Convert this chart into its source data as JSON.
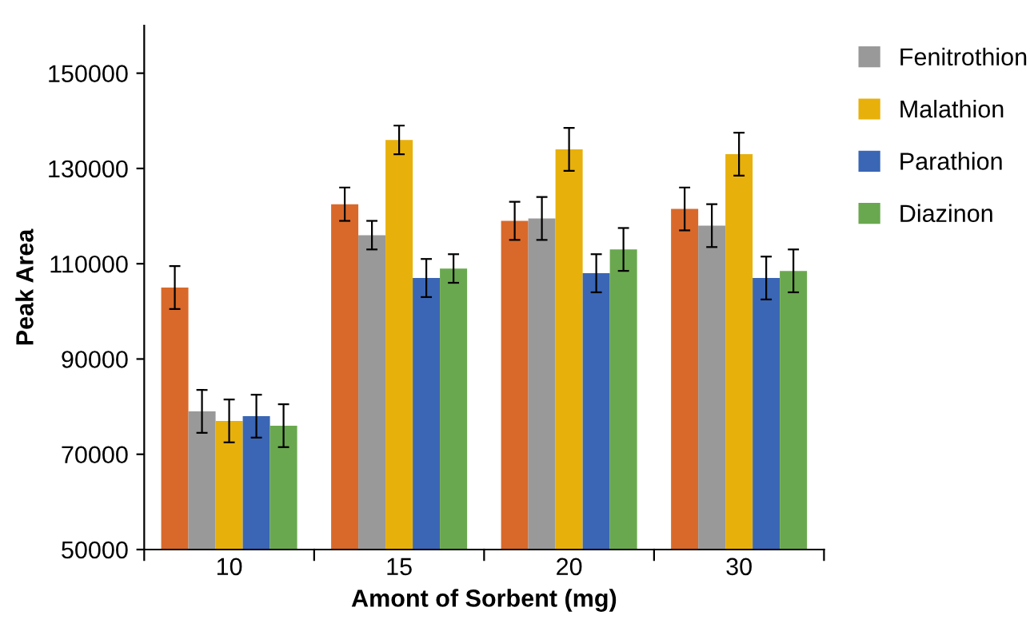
{
  "chart_data": {
    "type": "bar",
    "xlabel": "Amont of Sorbent (mg)",
    "ylabel": "Peak Area",
    "categories": [
      "10",
      "15",
      "20",
      "30"
    ],
    "series": [
      {
        "color": "#d9692a",
        "values": [
          105000,
          122500,
          119000,
          121500
        ],
        "errors": [
          4500,
          3500,
          4000,
          4500
        ]
      },
      {
        "name": "Fenitrothion",
        "color": "#999999",
        "values": [
          79000,
          116000,
          119500,
          118000
        ],
        "errors": [
          4500,
          3000,
          4500,
          4500
        ]
      },
      {
        "name": "Malathion",
        "color": "#e8b00a",
        "values": [
          77000,
          136000,
          134000,
          133000
        ],
        "errors": [
          4500,
          3000,
          4500,
          4500
        ]
      },
      {
        "name": "Parathion",
        "color": "#3a66b5",
        "values": [
          78000,
          107000,
          108000,
          107000
        ],
        "errors": [
          4500,
          4000,
          4000,
          4500
        ]
      },
      {
        "name": "Diazinon",
        "color": "#6aa84f",
        "values": [
          76000,
          109000,
          113000,
          108500
        ],
        "errors": [
          4500,
          3000,
          4500,
          4500
        ]
      }
    ],
    "ylim": [
      50000,
      160000
    ],
    "yticks": [
      50000,
      70000,
      90000,
      110000,
      130000,
      150000
    ],
    "grid": false,
    "legend": "right"
  }
}
